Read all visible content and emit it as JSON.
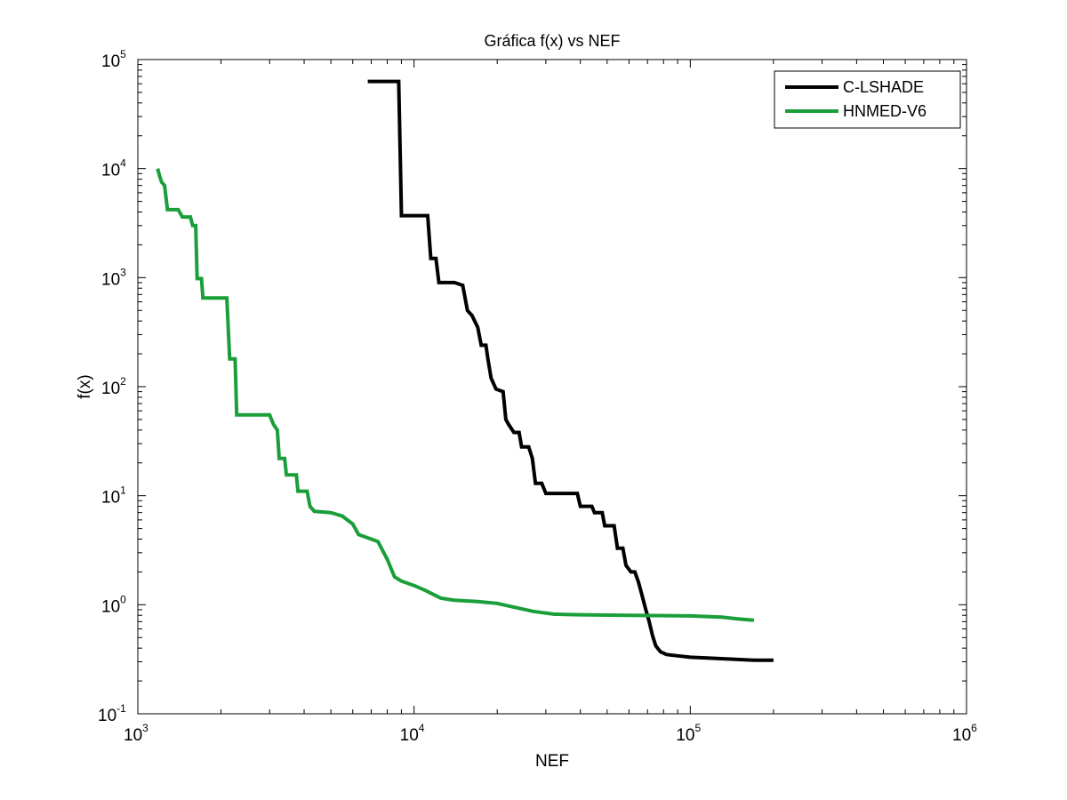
{
  "chart_data": {
    "type": "line",
    "title": "Gráfica f(x) vs NEF",
    "xlabel": "NEF",
    "ylabel": "f(x)",
    "xscale": "log",
    "yscale": "log",
    "xlim": [
      1000,
      1000000
    ],
    "ylim": [
      0.1,
      100000
    ],
    "grid": false,
    "legend_position": "top-right",
    "x_ticks": [
      {
        "value": 1000,
        "base": "10",
        "exp": "3"
      },
      {
        "value": 10000,
        "base": "10",
        "exp": "4"
      },
      {
        "value": 100000,
        "base": "10",
        "exp": "5"
      },
      {
        "value": 1000000,
        "base": "10",
        "exp": "6"
      }
    ],
    "y_ticks": [
      {
        "value": 0.1,
        "base": "10",
        "exp": "-1"
      },
      {
        "value": 1,
        "base": "10",
        "exp": "0"
      },
      {
        "value": 10,
        "base": "10",
        "exp": "1"
      },
      {
        "value": 100,
        "base": "10",
        "exp": "2"
      },
      {
        "value": 1000,
        "base": "10",
        "exp": "3"
      },
      {
        "value": 10000,
        "base": "10",
        "exp": "4"
      },
      {
        "value": 100000,
        "base": "10",
        "exp": "5"
      }
    ],
    "series": [
      {
        "name": "C-LSHADE",
        "color": "#000000",
        "points": [
          [
            6800,
            63000
          ],
          [
            8800,
            63000
          ],
          [
            9000,
            3700
          ],
          [
            11200,
            3700
          ],
          [
            11500,
            1500
          ],
          [
            12000,
            1500
          ],
          [
            12300,
            900
          ],
          [
            14000,
            900
          ],
          [
            15000,
            850
          ],
          [
            15600,
            500
          ],
          [
            16200,
            450
          ],
          [
            17000,
            350
          ],
          [
            17500,
            240
          ],
          [
            18200,
            240
          ],
          [
            18500,
            180
          ],
          [
            19000,
            120
          ],
          [
            19800,
            95
          ],
          [
            21000,
            90
          ],
          [
            21500,
            50
          ],
          [
            22000,
            45
          ],
          [
            23000,
            38
          ],
          [
            24000,
            38
          ],
          [
            24500,
            28
          ],
          [
            26000,
            28
          ],
          [
            26800,
            22
          ],
          [
            27500,
            13
          ],
          [
            29000,
            13
          ],
          [
            30000,
            10.5
          ],
          [
            39000,
            10.5
          ],
          [
            40000,
            8
          ],
          [
            44000,
            8
          ],
          [
            45000,
            7
          ],
          [
            48000,
            7
          ],
          [
            49000,
            5.3
          ],
          [
            53000,
            5.3
          ],
          [
            54500,
            3.3
          ],
          [
            57000,
            3.3
          ],
          [
            58500,
            2.3
          ],
          [
            61000,
            2.0
          ],
          [
            63000,
            2.0
          ],
          [
            65000,
            1.6
          ],
          [
            67000,
            1.2
          ],
          [
            69000,
            0.9
          ],
          [
            71000,
            0.7
          ],
          [
            73000,
            0.52
          ],
          [
            75000,
            0.42
          ],
          [
            78000,
            0.37
          ],
          [
            82000,
            0.35
          ],
          [
            90000,
            0.34
          ],
          [
            100000,
            0.33
          ],
          [
            130000,
            0.32
          ],
          [
            170000,
            0.31
          ],
          [
            200000,
            0.31
          ]
        ]
      },
      {
        "name": "HNMED-V6",
        "color": "#1a9e3a",
        "points": [
          [
            1180,
            10000
          ],
          [
            1200,
            8500
          ],
          [
            1220,
            7500
          ],
          [
            1250,
            7000
          ],
          [
            1280,
            4200
          ],
          [
            1400,
            4200
          ],
          [
            1450,
            3600
          ],
          [
            1550,
            3600
          ],
          [
            1580,
            3000
          ],
          [
            1620,
            3000
          ],
          [
            1640,
            980
          ],
          [
            1700,
            980
          ],
          [
            1720,
            650
          ],
          [
            2100,
            650
          ],
          [
            2150,
            180
          ],
          [
            2250,
            180
          ],
          [
            2280,
            55
          ],
          [
            3000,
            55
          ],
          [
            3100,
            45
          ],
          [
            3200,
            40
          ],
          [
            3250,
            22
          ],
          [
            3400,
            22
          ],
          [
            3450,
            15.5
          ],
          [
            3750,
            15.5
          ],
          [
            3800,
            11
          ],
          [
            4100,
            11
          ],
          [
            4200,
            8
          ],
          [
            4350,
            7.2
          ],
          [
            5000,
            7.0
          ],
          [
            5500,
            6.5
          ],
          [
            6000,
            5.5
          ],
          [
            6300,
            4.4
          ],
          [
            7000,
            4.0
          ],
          [
            7400,
            3.8
          ],
          [
            8000,
            2.6
          ],
          [
            8500,
            1.8
          ],
          [
            9000,
            1.65
          ],
          [
            10000,
            1.5
          ],
          [
            11000,
            1.35
          ],
          [
            12500,
            1.15
          ],
          [
            14000,
            1.1
          ],
          [
            17000,
            1.07
          ],
          [
            20000,
            1.03
          ],
          [
            23000,
            0.95
          ],
          [
            27000,
            0.87
          ],
          [
            32000,
            0.82
          ],
          [
            40000,
            0.81
          ],
          [
            60000,
            0.8
          ],
          [
            100000,
            0.79
          ],
          [
            130000,
            0.77
          ],
          [
            150000,
            0.74
          ],
          [
            170000,
            0.72
          ]
        ]
      }
    ]
  }
}
